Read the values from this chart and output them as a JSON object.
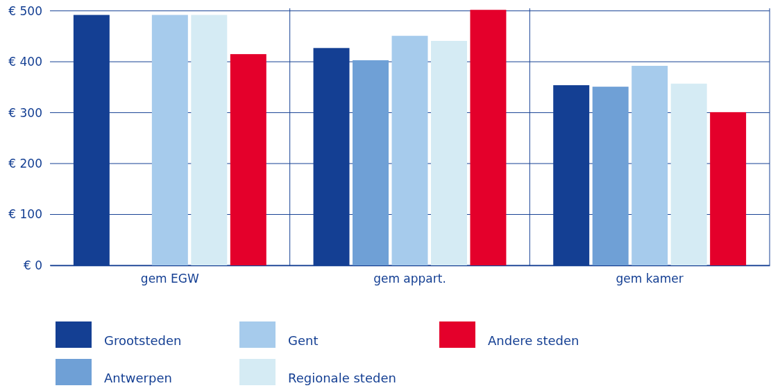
{
  "chart_data": {
    "type": "bar",
    "categories": [
      "gem EGW",
      "gem appart.",
      "gem kamer"
    ],
    "series": [
      {
        "name": "Grootsteden",
        "color": "#143f93",
        "values": [
          492,
          427,
          354
        ]
      },
      {
        "name": "Antwerpen",
        "color": "#6fa0d6",
        "values": [
          null,
          403,
          351
        ]
      },
      {
        "name": "Gent",
        "color": "#a6cbec",
        "values": [
          492,
          451,
          392
        ]
      },
      {
        "name": "Regionale steden",
        "color": "#d5ebf4",
        "values": [
          492,
          441,
          357
        ]
      },
      {
        "name": "Andere steden",
        "color": "#e4002b",
        "values": [
          415,
          502,
          301
        ]
      }
    ],
    "ylim": [
      0,
      505
    ],
    "yticks": [
      {
        "value": 0,
        "label": "€ 0"
      },
      {
        "value": 100,
        "label": "€ 100"
      },
      {
        "value": 200,
        "label": "€ 200"
      },
      {
        "value": 300,
        "label": "€ 300"
      },
      {
        "value": 400,
        "label": "€ 400"
      },
      {
        "value": 500,
        "label": "€ 500"
      }
    ],
    "grid": true,
    "legend": "bottom"
  }
}
